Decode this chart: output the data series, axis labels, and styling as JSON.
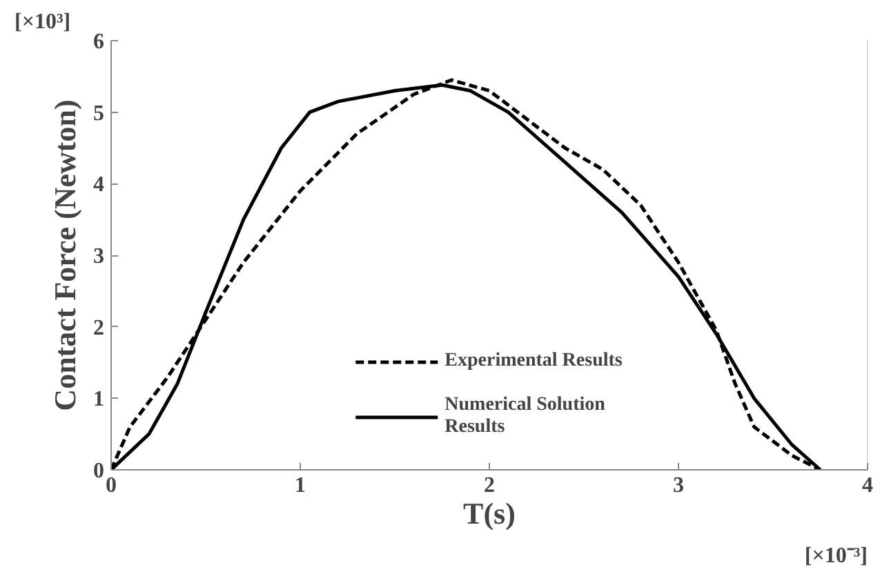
{
  "chart_data": {
    "type": "line",
    "xlabel": "T(s)",
    "ylabel": "Contact Force (Newton)",
    "annotations": [
      "[×10³]",
      "[×10⁻³]"
    ],
    "xlim": [
      0,
      4
    ],
    "ylim": [
      0,
      6
    ],
    "xticks": [
      0,
      1,
      2,
      3,
      4
    ],
    "yticks": [
      0,
      1,
      2,
      3,
      4,
      5,
      6
    ],
    "grid": false,
    "legend": "bottom",
    "series": [
      {
        "name": "Experimental Results",
        "color": "#000000",
        "line_style": "dashed",
        "x": [
          0,
          0.1,
          0.3,
          0.5,
          0.7,
          1.0,
          1.3,
          1.6,
          1.8,
          2.0,
          2.2,
          2.4,
          2.6,
          2.8,
          3.0,
          3.2,
          3.3,
          3.4,
          3.6,
          3.75
        ],
        "values": [
          0,
          0.6,
          1.3,
          2.1,
          2.9,
          3.9,
          4.7,
          5.25,
          5.45,
          5.3,
          4.9,
          4.5,
          4.2,
          3.7,
          2.9,
          1.95,
          1.2,
          0.6,
          0.2,
          0
        ]
      },
      {
        "name": "Numerical Solution\nResults",
        "color": "#000000",
        "line_style": "solid",
        "x": [
          0,
          0.2,
          0.35,
          0.5,
          0.7,
          0.9,
          1.05,
          1.2,
          1.5,
          1.75,
          1.9,
          2.1,
          2.4,
          2.7,
          3.0,
          3.2,
          3.4,
          3.6,
          3.75
        ],
        "values": [
          0,
          0.5,
          1.2,
          2.2,
          3.5,
          4.5,
          5.0,
          5.15,
          5.3,
          5.38,
          5.3,
          5.0,
          4.3,
          3.6,
          2.7,
          1.9,
          1.0,
          0.35,
          0
        ]
      }
    ]
  }
}
